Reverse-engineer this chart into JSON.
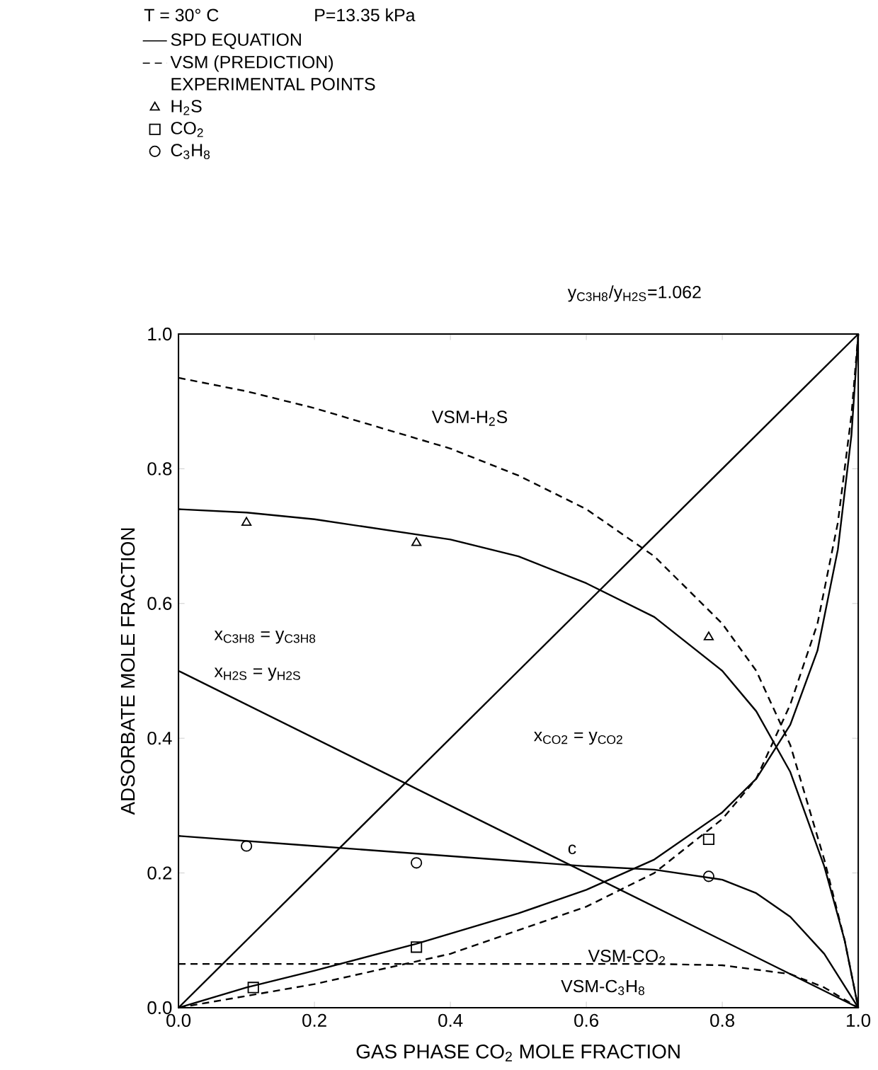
{
  "chart_data": {
    "type": "line",
    "title": "T = 30° C",
    "subtitle": "P=13.35 kPa",
    "xlabel": "GAS PHASE CO$_{2}$ MOLE FRACTION",
    "ylabel": "ADSORBATE MOLE FRACTION",
    "legend_title": "EXPERIMENTAL POINTS",
    "legend": "top left",
    "grid": false,
    "xlim": [
      0,
      1
    ],
    "ylim": [
      0,
      1
    ],
    "xticks": [
      {
        "value": 0,
        "label": "0.0"
      },
      0.2,
      0.4,
      0.6,
      0.8,
      {
        "value": 1,
        "label": "1.0"
      }
    ],
    "yticks": [
      {
        "value": 0,
        "label": "0.0"
      },
      0.2,
      0.4,
      0.6,
      0.8,
      {
        "value": 1,
        "label": "1.0"
      }
    ],
    "series": [
      {
        "name": "SPD EQUATION",
        "type": "line",
        "line_style": "solid",
        "color": "#000000",
        "x": [
          0,
          0.1,
          0.2,
          0.3,
          0.4,
          0.5,
          0.6,
          0.7,
          0.8,
          0.85,
          0.9,
          0.95,
          0.98,
          1
        ],
        "values": [
          0.74,
          0.735,
          0.725,
          0.71,
          0.695,
          0.67,
          0.63,
          0.58,
          0.5,
          0.44,
          0.35,
          0.21,
          0.1,
          0
        ]
      },
      {
        "name": "VSM (PREDICTION)",
        "type": "line",
        "line_style": "dashed",
        "color": "#000000",
        "x": [
          0,
          0.1,
          0.2,
          0.3,
          0.4,
          0.5,
          0.6,
          0.7,
          0.8,
          0.85,
          0.9,
          0.95,
          0.98,
          1
        ],
        "values": [
          0.935,
          0.915,
          0.89,
          0.86,
          0.83,
          0.79,
          0.74,
          0.67,
          0.57,
          0.5,
          0.39,
          0.22,
          0.1,
          0
        ]
      },
      {
        "type": "line",
        "line_style": "solid",
        "color": "#000000",
        "x": [
          0,
          1
        ],
        "values": [
          0,
          1
        ]
      },
      {
        "type": "line",
        "line_style": "solid",
        "color": "#000000",
        "x": [
          0,
          1
        ],
        "values": [
          0.5,
          0
        ]
      },
      {
        "type": "line",
        "line_style": "solid",
        "color": "#000000",
        "x": [
          0,
          0.2,
          0.4,
          0.6,
          0.7,
          0.8,
          0.85,
          0.9,
          0.95,
          1
        ],
        "values": [
          0.255,
          0.24,
          0.225,
          0.21,
          0.205,
          0.19,
          0.17,
          0.135,
          0.08,
          0
        ]
      },
      {
        "type": "line",
        "line_style": "solid",
        "color": "#000000",
        "x": [
          0,
          0.1,
          0.2,
          0.35,
          0.5,
          0.6,
          0.7,
          0.8,
          0.85,
          0.9,
          0.94,
          0.97,
          0.99,
          1
        ],
        "values": [
          0,
          0.03,
          0.055,
          0.095,
          0.14,
          0.175,
          0.22,
          0.29,
          0.34,
          0.42,
          0.53,
          0.68,
          0.85,
          1
        ]
      },
      {
        "type": "line",
        "line_style": "dashed",
        "color": "#000000",
        "x": [
          0,
          0.2,
          0.4,
          0.6,
          0.7,
          0.8,
          0.85,
          0.9,
          0.94,
          0.97,
          0.99,
          1
        ],
        "values": [
          0,
          0.035,
          0.08,
          0.15,
          0.2,
          0.28,
          0.34,
          0.45,
          0.57,
          0.72,
          0.88,
          1
        ]
      },
      {
        "type": "line",
        "line_style": "dashed",
        "color": "#000000",
        "x": [
          0,
          0.5,
          0.7,
          0.8,
          0.9,
          0.95,
          1
        ],
        "values": [
          0.065,
          0.065,
          0.065,
          0.063,
          0.05,
          0.03,
          0
        ]
      },
      {
        "name": "H$_{2}$S",
        "type": "scatter",
        "marker": "triangle",
        "color": "#000000",
        "x": [
          0.1,
          0.35,
          0.78
        ],
        "values": [
          0.72,
          0.69,
          0.55
        ]
      },
      {
        "name": "CO$_{2}$",
        "type": "scatter",
        "marker": "square",
        "color": "#000000",
        "x": [
          0.11,
          0.35,
          0.78
        ],
        "values": [
          0.03,
          0.09,
          0.25
        ]
      },
      {
        "name": "C$_{3}$H$_{8}$",
        "type": "scatter",
        "marker": "circle",
        "color": "#000000",
        "x": [
          0.1,
          0.35,
          0.78
        ],
        "values": [
          0.24,
          0.215,
          0.195
        ]
      }
    ],
    "annotations": [
      "VSM-H$_{2}$S",
      "x$_{C3H8}$ = y$_{C3H8}$",
      "x$_{H2S}$ = y$_{H2S}$",
      "x$_{CO2}$ = y$_{CO2}$",
      "c",
      "VSM-CO$_{2}$",
      "VSM-C$_{3}$H$_{8}$",
      "y$_{C3H8}$/y$_{H2S}$=1.062"
    ]
  }
}
